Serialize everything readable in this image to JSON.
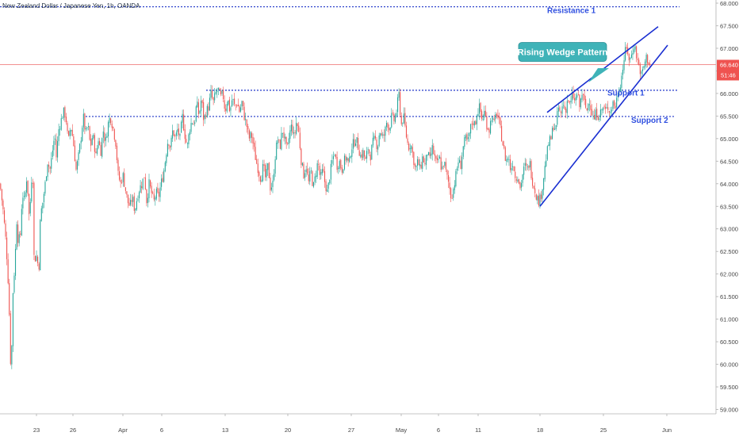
{
  "symbol_title": "New Zealand Dollar / Japanese Yen, 1h, OANDA",
  "colors": {
    "up": "#26a69a",
    "down": "#ef5350",
    "wick": "#555555",
    "level_line": "#1f35c8",
    "wedge_line": "#1a2fd1",
    "annotation_text": "#2f4fe0",
    "callout_bg": "#3fb3b8",
    "callout_text": "#ffffff",
    "price_tag_bg": "#ef5350",
    "price_line": "#f08080",
    "axis_text": "#444444",
    "axis_line": "#b0b0b0"
  },
  "price_tag": {
    "price": "66.640",
    "countdown": "51:46"
  },
  "chart_data": {
    "type": "candlestick",
    "title": "New Zealand Dollar / Japanese Yen, 1h, OANDA",
    "xlabel": "",
    "ylabel": "",
    "ylim": [
      58.8,
      68.0
    ],
    "x_tick_labels": [
      "23",
      "26",
      "Apr",
      "6",
      "13",
      "20",
      "27",
      "May",
      "6",
      "11",
      "18",
      "25",
      "Jun"
    ],
    "y_tick_labels": [
      "59.000",
      "59.500",
      "60.000",
      "60.500",
      "61.000",
      "61.500",
      "62.000",
      "62.500",
      "63.000",
      "63.500",
      "64.000",
      "64.500",
      "65.000",
      "65.500",
      "66.000",
      "66.500",
      "67.000",
      "67.500",
      "68.000"
    ],
    "close_path": [
      [
        0,
        64.0
      ],
      [
        4,
        63.4
      ],
      [
        8,
        62.6
      ],
      [
        11,
        61.6
      ],
      [
        14,
        59.6
      ],
      [
        16,
        61.5
      ],
      [
        19,
        62.3
      ],
      [
        21,
        63.2
      ],
      [
        23,
        62.7
      ],
      [
        26,
        62.9
      ],
      [
        28,
        63.8
      ],
      [
        31,
        63.6
      ],
      [
        34,
        64.2
      ],
      [
        37,
        63.2
      ],
      [
        41,
        64.5
      ],
      [
        43,
        62.3
      ],
      [
        46,
        62.4
      ],
      [
        49,
        62.1
      ],
      [
        51,
        63.3
      ],
      [
        54,
        63.6
      ],
      [
        57,
        64.0
      ],
      [
        60,
        64.5
      ],
      [
        63,
        64.3
      ],
      [
        66,
        64.7
      ],
      [
        69,
        65.1
      ],
      [
        71,
        64.6
      ],
      [
        74,
        65.2
      ],
      [
        77,
        65.4
      ],
      [
        80,
        65.6
      ],
      [
        83,
        65.5
      ],
      [
        86,
        64.9
      ],
      [
        89,
        65.3
      ],
      [
        92,
        65.0
      ],
      [
        96,
        64.3
      ],
      [
        99,
        64.6
      ],
      [
        102,
        65.0
      ],
      [
        105,
        65.5
      ],
      [
        108,
        65.1
      ],
      [
        111,
        65.3
      ],
      [
        114,
        64.8
      ],
      [
        117,
        65.1
      ],
      [
        121,
        64.6
      ],
      [
        124,
        65.0
      ],
      [
        127,
        64.7
      ],
      [
        130,
        65.2
      ],
      [
        133,
        64.9
      ],
      [
        136,
        65.3
      ],
      [
        139,
        65.5
      ],
      [
        143,
        65.2
      ],
      [
        146,
        64.9
      ],
      [
        149,
        64.2
      ],
      [
        152,
        64.0
      ],
      [
        155,
        64.2
      ],
      [
        158,
        63.9
      ],
      [
        161,
        63.6
      ],
      [
        164,
        63.5
      ],
      [
        167,
        63.7
      ],
      [
        170,
        63.4
      ],
      [
        173,
        63.7
      ],
      [
        176,
        63.9
      ],
      [
        179,
        64.0
      ],
      [
        182,
        64.2
      ],
      [
        185,
        63.6
      ],
      [
        188,
        64.0
      ],
      [
        191,
        63.8
      ],
      [
        194,
        63.6
      ],
      [
        197,
        63.8
      ],
      [
        200,
        63.7
      ],
      [
        203,
        64.0
      ],
      [
        206,
        64.2
      ],
      [
        209,
        64.6
      ],
      [
        212,
        65.0
      ],
      [
        215,
        64.8
      ],
      [
        218,
        65.2
      ],
      [
        221,
        65.0
      ],
      [
        224,
        65.2
      ],
      [
        227,
        65.0
      ],
      [
        230,
        65.5
      ],
      [
        233,
        65.1
      ],
      [
        236,
        64.8
      ],
      [
        239,
        65.2
      ],
      [
        242,
        65.4
      ],
      [
        245,
        65.3
      ],
      [
        248,
        65.8
      ],
      [
        251,
        65.5
      ],
      [
        254,
        65.9
      ],
      [
        257,
        65.4
      ],
      [
        260,
        65.6
      ],
      [
        263,
        65.7
      ],
      [
        266,
        66.0
      ],
      [
        269,
        65.8
      ],
      [
        272,
        66.0
      ],
      [
        275,
        66.1
      ],
      [
        278,
        65.9
      ],
      [
        281,
        66.0
      ],
      [
        284,
        65.6
      ],
      [
        287,
        65.9
      ],
      [
        290,
        65.6
      ],
      [
        293,
        65.9
      ],
      [
        296,
        65.7
      ],
      [
        299,
        65.8
      ],
      [
        302,
        65.6
      ],
      [
        305,
        65.8
      ],
      [
        308,
        65.5
      ],
      [
        311,
        65.3
      ],
      [
        314,
        65.0
      ],
      [
        317,
        65.1
      ],
      [
        320,
        64.8
      ],
      [
        323,
        64.5
      ],
      [
        326,
        64.3
      ],
      [
        329,
        64.1
      ],
      [
        332,
        64.4
      ],
      [
        335,
        64.1
      ],
      [
        338,
        64.4
      ],
      [
        341,
        63.9
      ],
      [
        344,
        64.0
      ],
      [
        347,
        64.6
      ],
      [
        350,
        65.0
      ],
      [
        353,
        64.8
      ],
      [
        356,
        65.2
      ],
      [
        359,
        65.0
      ],
      [
        362,
        64.7
      ],
      [
        365,
        65.1
      ],
      [
        368,
        65.3
      ],
      [
        371,
        65.0
      ],
      [
        374,
        65.4
      ],
      [
        377,
        65.1
      ],
      [
        380,
        64.5
      ],
      [
        383,
        64.2
      ],
      [
        386,
        64.4
      ],
      [
        389,
        64.0
      ],
      [
        392,
        64.3
      ],
      [
        395,
        63.9
      ],
      [
        398,
        64.2
      ],
      [
        401,
        64.5
      ],
      [
        404,
        64.1
      ],
      [
        407,
        64.3
      ],
      [
        410,
        64.0
      ],
      [
        413,
        63.8
      ],
      [
        416,
        64.2
      ],
      [
        419,
        64.5
      ],
      [
        422,
        64.7
      ],
      [
        425,
        64.4
      ],
      [
        428,
        64.5
      ],
      [
        431,
        64.3
      ],
      [
        434,
        64.5
      ],
      [
        437,
        64.6
      ],
      [
        440,
        64.4
      ],
      [
        443,
        64.8
      ],
      [
        446,
        64.9
      ],
      [
        449,
        65.0
      ],
      [
        452,
        64.8
      ],
      [
        455,
        64.6
      ],
      [
        458,
        64.7
      ],
      [
        461,
        64.5
      ],
      [
        464,
        64.8
      ],
      [
        467,
        64.6
      ],
      [
        470,
        64.9
      ],
      [
        473,
        65.0
      ],
      [
        476,
        64.8
      ],
      [
        479,
        65.2
      ],
      [
        482,
        65.0
      ],
      [
        485,
        65.1
      ],
      [
        488,
        65.4
      ],
      [
        491,
        65.2
      ],
      [
        494,
        65.5
      ],
      [
        497,
        65.4
      ],
      [
        500,
        65.6
      ],
      [
        503,
        66.0
      ],
      [
        506,
        65.3
      ],
      [
        509,
        65.5
      ],
      [
        512,
        65.1
      ],
      [
        515,
        64.8
      ],
      [
        518,
        64.9
      ],
      [
        521,
        64.6
      ],
      [
        524,
        64.3
      ],
      [
        527,
        64.5
      ],
      [
        530,
        64.3
      ],
      [
        533,
        64.6
      ],
      [
        536,
        64.4
      ],
      [
        539,
        64.7
      ],
      [
        542,
        64.5
      ],
      [
        545,
        64.8
      ],
      [
        548,
        64.6
      ],
      [
        551,
        64.4
      ],
      [
        554,
        64.6
      ],
      [
        557,
        64.3
      ],
      [
        560,
        64.5
      ],
      [
        563,
        64.2
      ],
      [
        566,
        64.0
      ],
      [
        569,
        63.7
      ],
      [
        572,
        63.9
      ],
      [
        575,
        64.2
      ],
      [
        578,
        64.5
      ],
      [
        581,
        64.4
      ],
      [
        584,
        64.8
      ],
      [
        587,
        65.0
      ],
      [
        590,
        64.9
      ],
      [
        593,
        65.2
      ],
      [
        596,
        65.4
      ],
      [
        599,
        65.3
      ],
      [
        602,
        65.6
      ],
      [
        605,
        65.7
      ],
      [
        608,
        65.4
      ],
      [
        611,
        65.6
      ],
      [
        614,
        65.3
      ],
      [
        617,
        65.2
      ],
      [
        620,
        65.5
      ],
      [
        623,
        65.3
      ],
      [
        626,
        65.6
      ],
      [
        629,
        65.4
      ],
      [
        632,
        65.1
      ],
      [
        635,
        64.8
      ],
      [
        638,
        64.5
      ],
      [
        641,
        64.6
      ],
      [
        644,
        64.3
      ],
      [
        647,
        64.5
      ],
      [
        650,
        64.1
      ],
      [
        653,
        64.2
      ],
      [
        656,
        63.9
      ],
      [
        659,
        64.2
      ],
      [
        662,
        64.4
      ],
      [
        665,
        64.3
      ],
      [
        668,
        64.5
      ],
      [
        671,
        64.1
      ],
      [
        674,
        63.9
      ],
      [
        677,
        63.7
      ],
      [
        680,
        63.6
      ],
      [
        683,
        63.8
      ],
      [
        686,
        64.2
      ],
      [
        689,
        64.6
      ],
      [
        692,
        64.9
      ],
      [
        695,
        65.0
      ],
      [
        698,
        65.3
      ],
      [
        701,
        65.2
      ],
      [
        704,
        65.7
      ],
      [
        707,
        65.5
      ],
      [
        710,
        65.8
      ],
      [
        713,
        65.6
      ],
      [
        716,
        65.9
      ],
      [
        719,
        65.7
      ],
      [
        722,
        66.0
      ],
      [
        725,
        65.8
      ],
      [
        728,
        66.0
      ],
      [
        731,
        65.7
      ],
      [
        734,
        66.0
      ],
      [
        737,
        65.8
      ],
      [
        740,
        65.6
      ],
      [
        743,
        65.9
      ],
      [
        746,
        65.6
      ],
      [
        749,
        65.4
      ],
      [
        752,
        65.6
      ],
      [
        755,
        65.5
      ],
      [
        758,
        65.6
      ],
      [
        761,
        65.7
      ],
      [
        764,
        65.6
      ],
      [
        767,
        65.7
      ],
      [
        770,
        65.6
      ],
      [
        773,
        65.8
      ],
      [
        776,
        65.7
      ],
      [
        779,
        66.0
      ],
      [
        782,
        66.2
      ],
      [
        785,
        66.5
      ],
      [
        788,
        66.9
      ],
      [
        791,
        67.0
      ],
      [
        794,
        66.7
      ],
      [
        797,
        66.9
      ],
      [
        800,
        67.1
      ],
      [
        803,
        66.8
      ],
      [
        806,
        66.6
      ],
      [
        809,
        66.4
      ],
      [
        812,
        66.6
      ],
      [
        815,
        66.8
      ],
      [
        818,
        66.7
      ],
      [
        821,
        66.6
      ]
    ],
    "hlines": [
      {
        "name": "Resistance 1",
        "price": 67.92,
        "x_start": 0,
        "x_end": 857
      },
      {
        "name": "Support 1",
        "price": 66.07,
        "x_start": 260,
        "x_end": 854
      },
      {
        "name": "Support 2",
        "price": 65.49,
        "x_start": 108,
        "x_end": 852
      }
    ],
    "wedge_upper": [
      [
        690,
        65.58
      ],
      [
        830,
        67.48
      ]
    ],
    "wedge_lower": [
      [
        681,
        63.5
      ],
      [
        842,
        67.07
      ]
    ],
    "annotations": [
      {
        "text": "Resistance 1",
        "x": 690,
        "price": 67.78
      },
      {
        "text": "Support 1",
        "x": 766,
        "price": 65.95
      },
      {
        "text": "Support 2",
        "x": 796,
        "price": 65.35
      }
    ],
    "callout": {
      "text": "Rising Wedge Pattern"
    },
    "current_price": 66.64,
    "grid": false,
    "legend": "none"
  }
}
